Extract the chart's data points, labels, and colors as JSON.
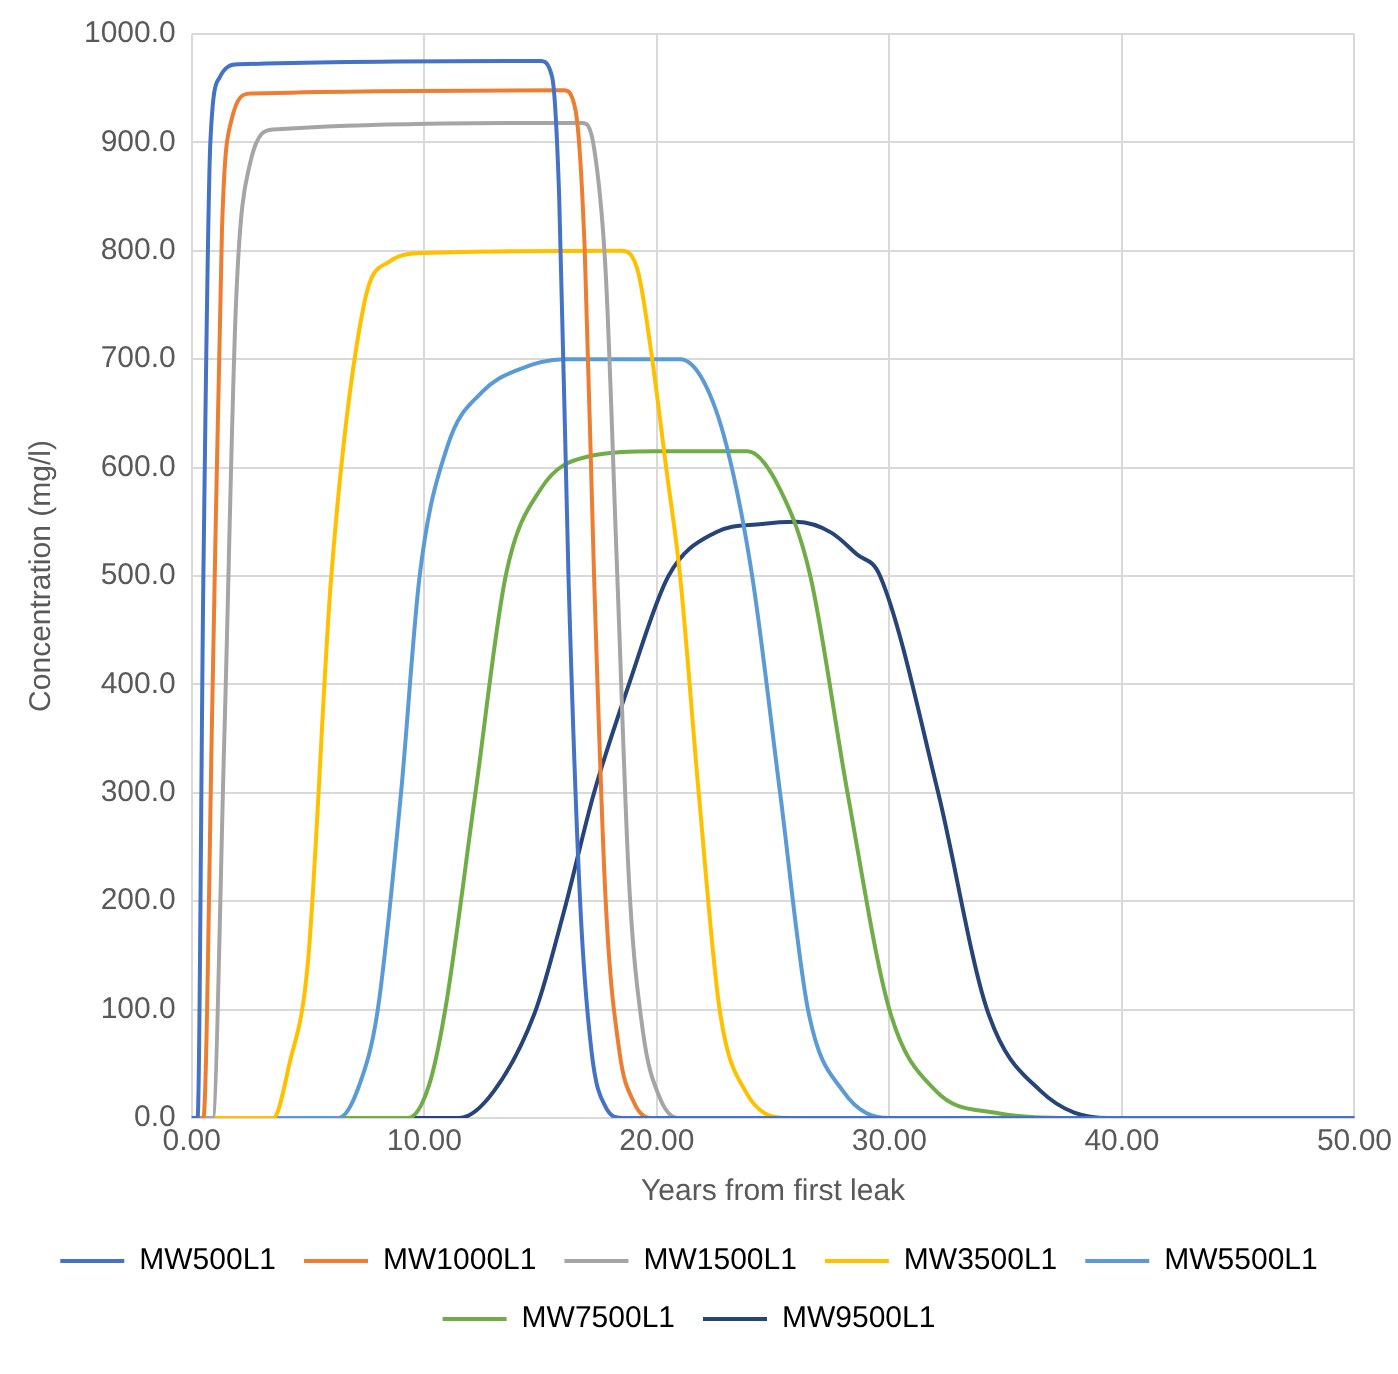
{
  "chart_data": {
    "type": "line",
    "xlabel": "Years from first leak",
    "ylabel": "Concentration (mg/l)",
    "xlim": [
      0,
      50
    ],
    "xticks": [
      {
        "value": 0,
        "label": "0.00"
      },
      {
        "value": 10,
        "label": "10.00"
      },
      {
        "value": 20,
        "label": "20.00"
      },
      {
        "value": 30,
        "label": "30.00"
      },
      {
        "value": 40,
        "label": "40.00"
      },
      {
        "value": 50,
        "label": "50.00"
      }
    ],
    "ylim": [
      0,
      1000
    ],
    "yticks": [
      {
        "value": 0,
        "label": "0.0"
      },
      {
        "value": 100,
        "label": "100.0"
      },
      {
        "value": 200,
        "label": "200.0"
      },
      {
        "value": 300,
        "label": "300.0"
      },
      {
        "value": 400,
        "label": "400.0"
      },
      {
        "value": 500,
        "label": "500.0"
      },
      {
        "value": 600,
        "label": "600.0"
      },
      {
        "value": 700,
        "label": "700.0"
      },
      {
        "value": 800,
        "label": "800.0"
      },
      {
        "value": 900,
        "label": "900.0"
      },
      {
        "value": 1000,
        "label": "1000.0"
      }
    ],
    "grid": true,
    "legend": "bottom",
    "marker": "none",
    "line_style": "solid",
    "series": [
      {
        "name": "MW500L1",
        "color": "#4472c4",
        "x": [
          0,
          0.25,
          0.5,
          0.8,
          1.2,
          2,
          15,
          15.5,
          15.8,
          16.2,
          16.7,
          17.2,
          17.8,
          18.5,
          50
        ],
        "values": [
          0,
          0,
          500,
          900,
          960,
          972,
          975,
          960,
          850,
          500,
          200,
          60,
          10,
          0,
          0
        ]
      },
      {
        "name": "MW1000L1",
        "color": "#ed7d31",
        "x": [
          0,
          0.5,
          0.9,
          1.3,
          1.7,
          2.5,
          16,
          16.5,
          16.9,
          17.3,
          17.8,
          18.4,
          19,
          19.7,
          50
        ],
        "values": [
          0,
          0,
          400,
          820,
          920,
          945,
          948,
          930,
          800,
          500,
          200,
          60,
          15,
          0,
          0
        ]
      },
      {
        "name": "MW1500L1",
        "color": "#a5a5a5",
        "x": [
          0,
          0.9,
          1.4,
          1.9,
          2.5,
          3.5,
          16.8,
          17.3,
          17.8,
          18.3,
          18.8,
          19.4,
          20.1,
          20.9,
          50
        ],
        "values": [
          0,
          0,
          350,
          750,
          880,
          912,
          918,
          895,
          780,
          500,
          220,
          80,
          20,
          0,
          0
        ]
      },
      {
        "name": "MW3500L1",
        "color": "#ffc000",
        "x": [
          0,
          3.5,
          4.2,
          5,
          6,
          7.4,
          8.5,
          10,
          18.5,
          19.2,
          19.8,
          20.4,
          21,
          21.8,
          22.7,
          23.8,
          25.7,
          50
        ],
        "values": [
          0,
          0,
          50,
          145,
          500,
          750,
          790,
          798,
          800,
          780,
          700,
          600,
          500,
          300,
          100,
          25,
          0,
          0
        ]
      },
      {
        "name": "MW5500L1",
        "color": "#5b9bd5",
        "x": [
          0,
          6.3,
          7.2,
          8,
          9,
          9.8,
          11,
          12.5,
          14,
          16,
          21,
          22,
          23,
          24.1,
          25.3,
          26.5,
          28,
          30,
          50
        ],
        "values": [
          0,
          0,
          30,
          100,
          300,
          500,
          620,
          670,
          690,
          700,
          700,
          680,
          620,
          500,
          300,
          100,
          25,
          0,
          0
        ]
      },
      {
        "name": "MW7500L1",
        "color": "#70ad47",
        "x": [
          0,
          9.3,
          10.2,
          10.9,
          12.2,
          13.5,
          15,
          17,
          20,
          23.9,
          25.3,
          26.6,
          28.2,
          30,
          32,
          34.5,
          38,
          50
        ],
        "values": [
          0,
          0,
          30,
          100,
          300,
          500,
          580,
          610,
          615,
          615,
          580,
          500,
          300,
          100,
          25,
          5,
          0,
          0
        ]
      },
      {
        "name": "MW9500L1",
        "color": "#264478",
        "x": [
          0,
          11.5,
          13,
          14.8,
          16,
          17.3,
          18.8,
          20.5,
          22.5,
          24.5,
          26,
          27.5,
          28.6,
          29.6,
          32.1,
          34.2,
          36.5,
          39.4,
          50
        ],
        "values": [
          0,
          0,
          25,
          100,
          190,
          300,
          400,
          500,
          540,
          548,
          550,
          540,
          520,
          500,
          300,
          100,
          25,
          0,
          0
        ]
      }
    ]
  }
}
